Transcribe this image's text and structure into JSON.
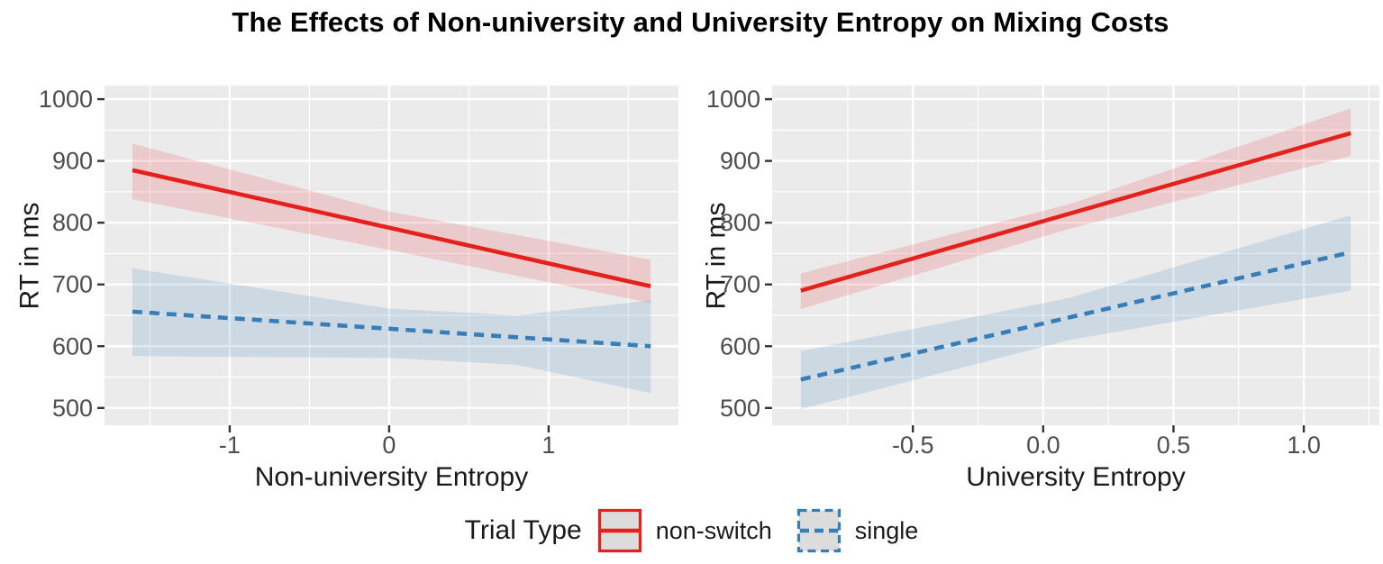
{
  "title": "The Effects of Non-university and University Entropy on Mixing Costs",
  "colors": {
    "accent_red": "#E4211C",
    "accent_blue": "#377EB8",
    "panel_bg": "#EBEBEB",
    "grid": "#FFFFFF",
    "tick_text": "#4D4D4D",
    "tick_mark": "#333333",
    "text": "#1A1A1A",
    "legend_key_bg": "#DCDCDC"
  },
  "legend": {
    "title": "Trial Type",
    "items": [
      {
        "label": "non-switch",
        "color": "#E4211C",
        "style": "solid"
      },
      {
        "label": "single",
        "color": "#377EB8",
        "style": "dashed"
      }
    ]
  },
  "chart_data": [
    {
      "type": "line",
      "panel": "left",
      "xlabel": "Non-university Entropy",
      "ylabel": "RT in ms",
      "xlim": [
        -1.785,
        1.814
      ],
      "ylim": [
        472,
        1022
      ],
      "grid": true,
      "xticks": [
        -1,
        0,
        1
      ],
      "xtick_labels": [
        "-1",
        "0",
        "1"
      ],
      "xminor": [
        -1.5,
        -0.5,
        0.5,
        1.5
      ],
      "yticks": [
        500,
        600,
        700,
        800,
        900,
        1000
      ],
      "ytick_labels": [
        "500",
        "600",
        "700",
        "800",
        "900",
        "1000"
      ],
      "yminor": [
        550,
        650,
        750,
        850,
        950
      ],
      "series": [
        {
          "name": "non-switch",
          "color": "#E4211C",
          "dash": false,
          "band_fill": "rgba(228,33,28,0.16)",
          "x": [
            -1.61,
            1.64
          ],
          "y": [
            885,
            697
          ],
          "band": {
            "x": [
              -1.61,
              0,
              1.64
            ],
            "hi": [
              928,
              818,
              740
            ],
            "lo": [
              838,
              756,
              670
            ]
          }
        },
        {
          "name": "single",
          "color": "#377EB8",
          "dash": true,
          "band_fill": "rgba(55,126,184,0.17)",
          "x": [
            -1.61,
            1.64
          ],
          "y": [
            656,
            600
          ],
          "band": {
            "x": [
              -1.61,
              0,
              0.8,
              1.64
            ],
            "hi": [
              726,
              661,
              650,
              674
            ],
            "lo": [
              584,
              581,
              570,
              524
            ]
          }
        }
      ]
    },
    {
      "type": "line",
      "panel": "right",
      "xlabel": "University Entropy",
      "ylabel": "RT in ms",
      "xlim": [
        -1.04,
        1.29
      ],
      "ylim": [
        472,
        1022
      ],
      "grid": true,
      "xticks": [
        -0.5,
        0,
        0.5,
        1
      ],
      "xtick_labels": [
        "-0.5",
        "0.0",
        "0.5",
        "1.0"
      ],
      "xminor": [
        -0.75,
        -0.25,
        0.25,
        0.75,
        1.25
      ],
      "yticks": [
        500,
        600,
        700,
        800,
        900,
        1000
      ],
      "ytick_labels": [
        "500",
        "600",
        "700",
        "800",
        "900",
        "1000"
      ],
      "yminor": [
        550,
        650,
        750,
        850,
        950
      ],
      "series": [
        {
          "name": "non-switch",
          "color": "#E4211C",
          "dash": false,
          "band_fill": "rgba(228,33,28,0.16)",
          "x": [
            -0.93,
            1.18
          ],
          "y": [
            690,
            945
          ],
          "band": {
            "x": [
              -0.93,
              0.1,
              1.18
            ],
            "hi": [
              718,
              830,
              985
            ],
            "lo": [
              660,
              790,
              908
            ]
          }
        },
        {
          "name": "single",
          "color": "#377EB8",
          "dash": true,
          "band_fill": "rgba(55,126,184,0.17)",
          "x": [
            -0.93,
            1.18
          ],
          "y": [
            546,
            752
          ],
          "band": {
            "x": [
              -0.93,
              0.1,
              1.18
            ],
            "hi": [
              592,
              678,
              812
            ],
            "lo": [
              498,
              610,
              690
            ]
          }
        }
      ]
    }
  ]
}
